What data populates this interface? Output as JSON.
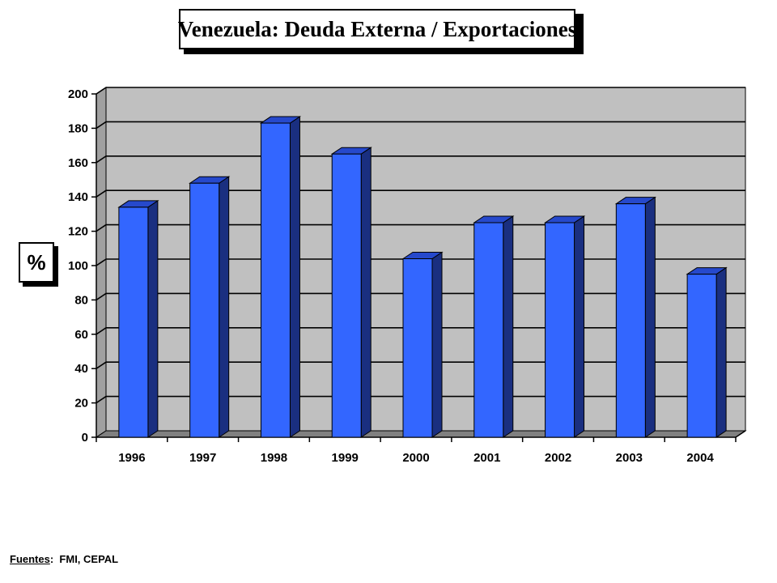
{
  "chart_data": {
    "type": "bar",
    "title": "Venezuela: Deuda Externa / Exportaciones",
    "ylabel": "%",
    "xlabel": "",
    "categories": [
      "1996",
      "1997",
      "1998",
      "1999",
      "2000",
      "2001",
      "2002",
      "2003",
      "2004"
    ],
    "values": [
      134,
      148,
      183,
      165,
      104,
      125,
      125,
      136,
      95
    ],
    "ylim": [
      0,
      200
    ],
    "yticks": [
      "0",
      "20",
      "40",
      "60",
      "80",
      "100",
      "120",
      "140",
      "160",
      "180",
      "200"
    ],
    "grid": true,
    "legend": "none",
    "colors": {
      "bar_front": "#3366ff",
      "bar_side": "#1a2f80",
      "bar_top": "#2649cc",
      "wall": "#c0c0c0",
      "floor": "#808080"
    }
  },
  "source": {
    "label": "Fuentes",
    "separator": ":",
    "value": "FMI, CEPAL"
  }
}
